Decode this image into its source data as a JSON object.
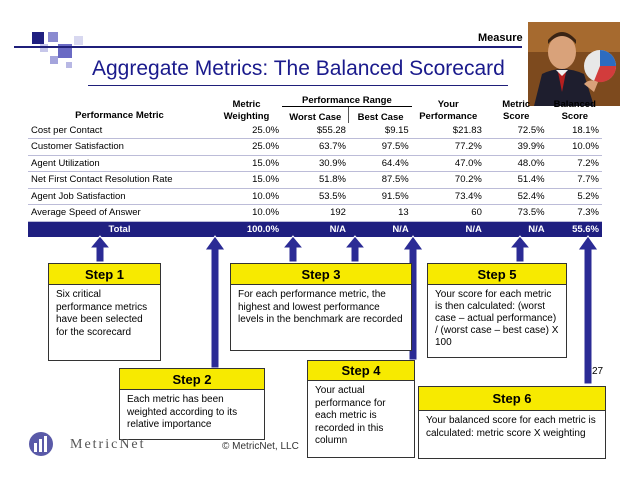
{
  "header": {
    "section_label": "Measure",
    "title": "Aggregate Metrics: The Balanced Scorecard"
  },
  "table": {
    "headers": {
      "metric": "Performance Metric",
      "weighting": "Metric Weighting",
      "range_group": "Performance Range",
      "worst": "Worst Case",
      "best": "Best Case",
      "your_perf": "Your Performance",
      "metric_score": "Metric Score",
      "balanced": "Balanced Score"
    },
    "rows": [
      {
        "metric": "Cost per Contact",
        "weighting": "25.0%",
        "worst": "$55.28",
        "best": "$9.15",
        "your_perf": "$21.83",
        "metric_score": "72.5%",
        "balanced": "18.1%"
      },
      {
        "metric": "Customer Satisfaction",
        "weighting": "25.0%",
        "worst": "63.7%",
        "best": "97.5%",
        "your_perf": "77.2%",
        "metric_score": "39.9%",
        "balanced": "10.0%"
      },
      {
        "metric": "Agent Utilization",
        "weighting": "15.0%",
        "worst": "30.9%",
        "best": "64.4%",
        "your_perf": "47.0%",
        "metric_score": "48.0%",
        "balanced": "7.2%"
      },
      {
        "metric": "Net First Contact Resolution Rate",
        "weighting": "15.0%",
        "worst": "51.8%",
        "best": "87.5%",
        "your_perf": "70.2%",
        "metric_score": "51.4%",
        "balanced": "7.7%"
      },
      {
        "metric": "Agent Job Satisfaction",
        "weighting": "10.0%",
        "worst": "53.5%",
        "best": "91.5%",
        "your_perf": "73.4%",
        "metric_score": "52.4%",
        "balanced": "5.2%"
      },
      {
        "metric": "Average Speed of Answer",
        "weighting": "10.0%",
        "worst": "192",
        "best": "13",
        "your_perf": "60",
        "metric_score": "73.5%",
        "balanced": "7.3%"
      }
    ],
    "total": {
      "label": "Total",
      "weighting": "100.0%",
      "worst": "N/A",
      "best": "N/A",
      "your_perf": "N/A",
      "metric_score": "N/A",
      "balanced": "55.6%"
    }
  },
  "steps": {
    "step1": {
      "title": "Step 1",
      "body": "Six critical performance metrics have been selected for the scorecard"
    },
    "step2": {
      "title": "Step 2",
      "body": "Each metric has been weighted according to its relative importance"
    },
    "step3": {
      "title": "Step 3",
      "body": "For each performance metric, the highest and lowest performance levels in the benchmark are recorded"
    },
    "step4": {
      "title": "Step 4",
      "body": "Your actual performance for each metric is recorded in this column"
    },
    "step5": {
      "title": "Step 5",
      "body": "Your score for each metric is then calculated: (worst case – actual performance) / (worst case – best case) X 100"
    },
    "step6": {
      "title": "Step 6",
      "body": "Your balanced score for each metric is calculated: metric score X weighting"
    }
  },
  "footer": {
    "page_number": "27",
    "copyright": "© MetricNet, LLC",
    "logo_text": "MetricNet"
  },
  "colors": {
    "step_header": "#f7ea00",
    "arrow_fill": "#2b2b95",
    "total_row": "#1f1f80",
    "title": "#1a1a8c"
  }
}
